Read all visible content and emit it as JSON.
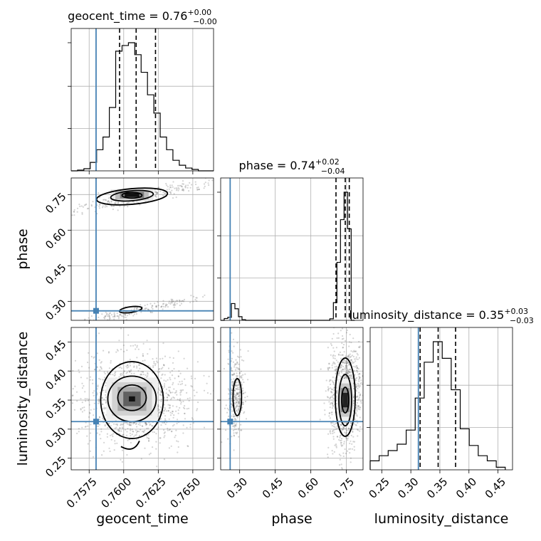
{
  "chart_data": {
    "type": "corner",
    "parameters": [
      "geocent_time",
      "phase",
      "luminosity_distance"
    ],
    "truth": {
      "geocent_time": 0.758,
      "phase": 0.26,
      "luminosity_distance": 0.313
    },
    "titles": {
      "geocent_time": {
        "main": "geocent_time = 0.76",
        "plus": "+0.00",
        "minus": "−0.00"
      },
      "phase": {
        "main": "phase = 0.74",
        "plus": "+0.02",
        "minus": "−0.04"
      },
      "luminosity_distance": {
        "main": "luminosity_distance = 0.35",
        "plus": "+0.03",
        "minus": "−0.03"
      }
    },
    "ranges": {
      "geocent_time": [
        0.7562,
        0.7665
      ],
      "phase": [
        0.22,
        0.82
      ],
      "luminosity_distance": [
        0.23,
        0.475
      ]
    },
    "ticks": {
      "geocent_time": {
        "values": [
          0.7575,
          0.76,
          0.7625,
          0.765
        ],
        "labels": [
          "0.7575",
          "0.7600",
          "0.7625",
          "0.7650"
        ]
      },
      "phase": {
        "values": [
          0.3,
          0.45,
          0.6,
          0.75
        ],
        "labels": [
          "0.30",
          "0.45",
          "0.60",
          "0.75"
        ]
      },
      "luminosity_distance": {
        "values": [
          0.25,
          0.3,
          0.35,
          0.4,
          0.45
        ],
        "labels": [
          "0.25",
          "0.30",
          "0.35",
          "0.40",
          "0.45"
        ]
      }
    },
    "axis_labels": {
      "x": [
        "geocent_time",
        "phase",
        "luminosity_distance"
      ],
      "y": [
        "phase",
        "luminosity_distance"
      ]
    },
    "quantiles": {
      "geocent_time": [
        0.7597,
        0.7609,
        0.7623
      ],
      "phase": [
        0.706,
        0.745,
        0.762
      ],
      "luminosity_distance": [
        0.316,
        0.347,
        0.377
      ]
    },
    "histograms": {
      "geocent_time": {
        "edges": [
          0.7562,
          0.75666,
          0.75712,
          0.75758,
          0.75804,
          0.7585,
          0.75896,
          0.75942,
          0.75988,
          0.76034,
          0.7608,
          0.76126,
          0.76172,
          0.76218,
          0.76264,
          0.7631,
          0.76356,
          0.76402,
          0.76448,
          0.76494,
          0.7654,
          0.7665
        ],
        "counts": [
          0,
          1,
          3,
          12,
          30,
          48,
          90,
          170,
          178,
          182,
          165,
          140,
          108,
          82,
          48,
          30,
          15,
          8,
          4,
          2,
          0
        ]
      },
      "phase": {
        "edges": [
          0.22,
          0.235,
          0.25,
          0.265,
          0.28,
          0.295,
          0.31,
          0.325,
          0.68,
          0.695,
          0.71,
          0.725,
          0.74,
          0.755,
          0.77,
          0.785
        ],
        "counts": [
          0,
          6,
          10,
          55,
          38,
          12,
          2,
          0,
          5,
          58,
          190,
          330,
          420,
          300,
          0
        ]
      },
      "luminosity_distance": {
        "edges": [
          0.23,
          0.2455,
          0.261,
          0.2765,
          0.292,
          0.3075,
          0.323,
          0.3385,
          0.354,
          0.3695,
          0.385,
          0.4005,
          0.416,
          0.4315,
          0.447,
          0.4625
        ],
        "counts": [
          14,
          22,
          30,
          40,
          62,
          112,
          168,
          200,
          174,
          125,
          64,
          38,
          22,
          14,
          4
        ]
      }
    },
    "contour_panels": [
      {
        "x": "geocent_time",
        "y": "phase"
      },
      {
        "x": "geocent_time",
        "y": "luminosity_distance"
      },
      {
        "x": "phase",
        "y": "luminosity_distance"
      }
    ]
  }
}
